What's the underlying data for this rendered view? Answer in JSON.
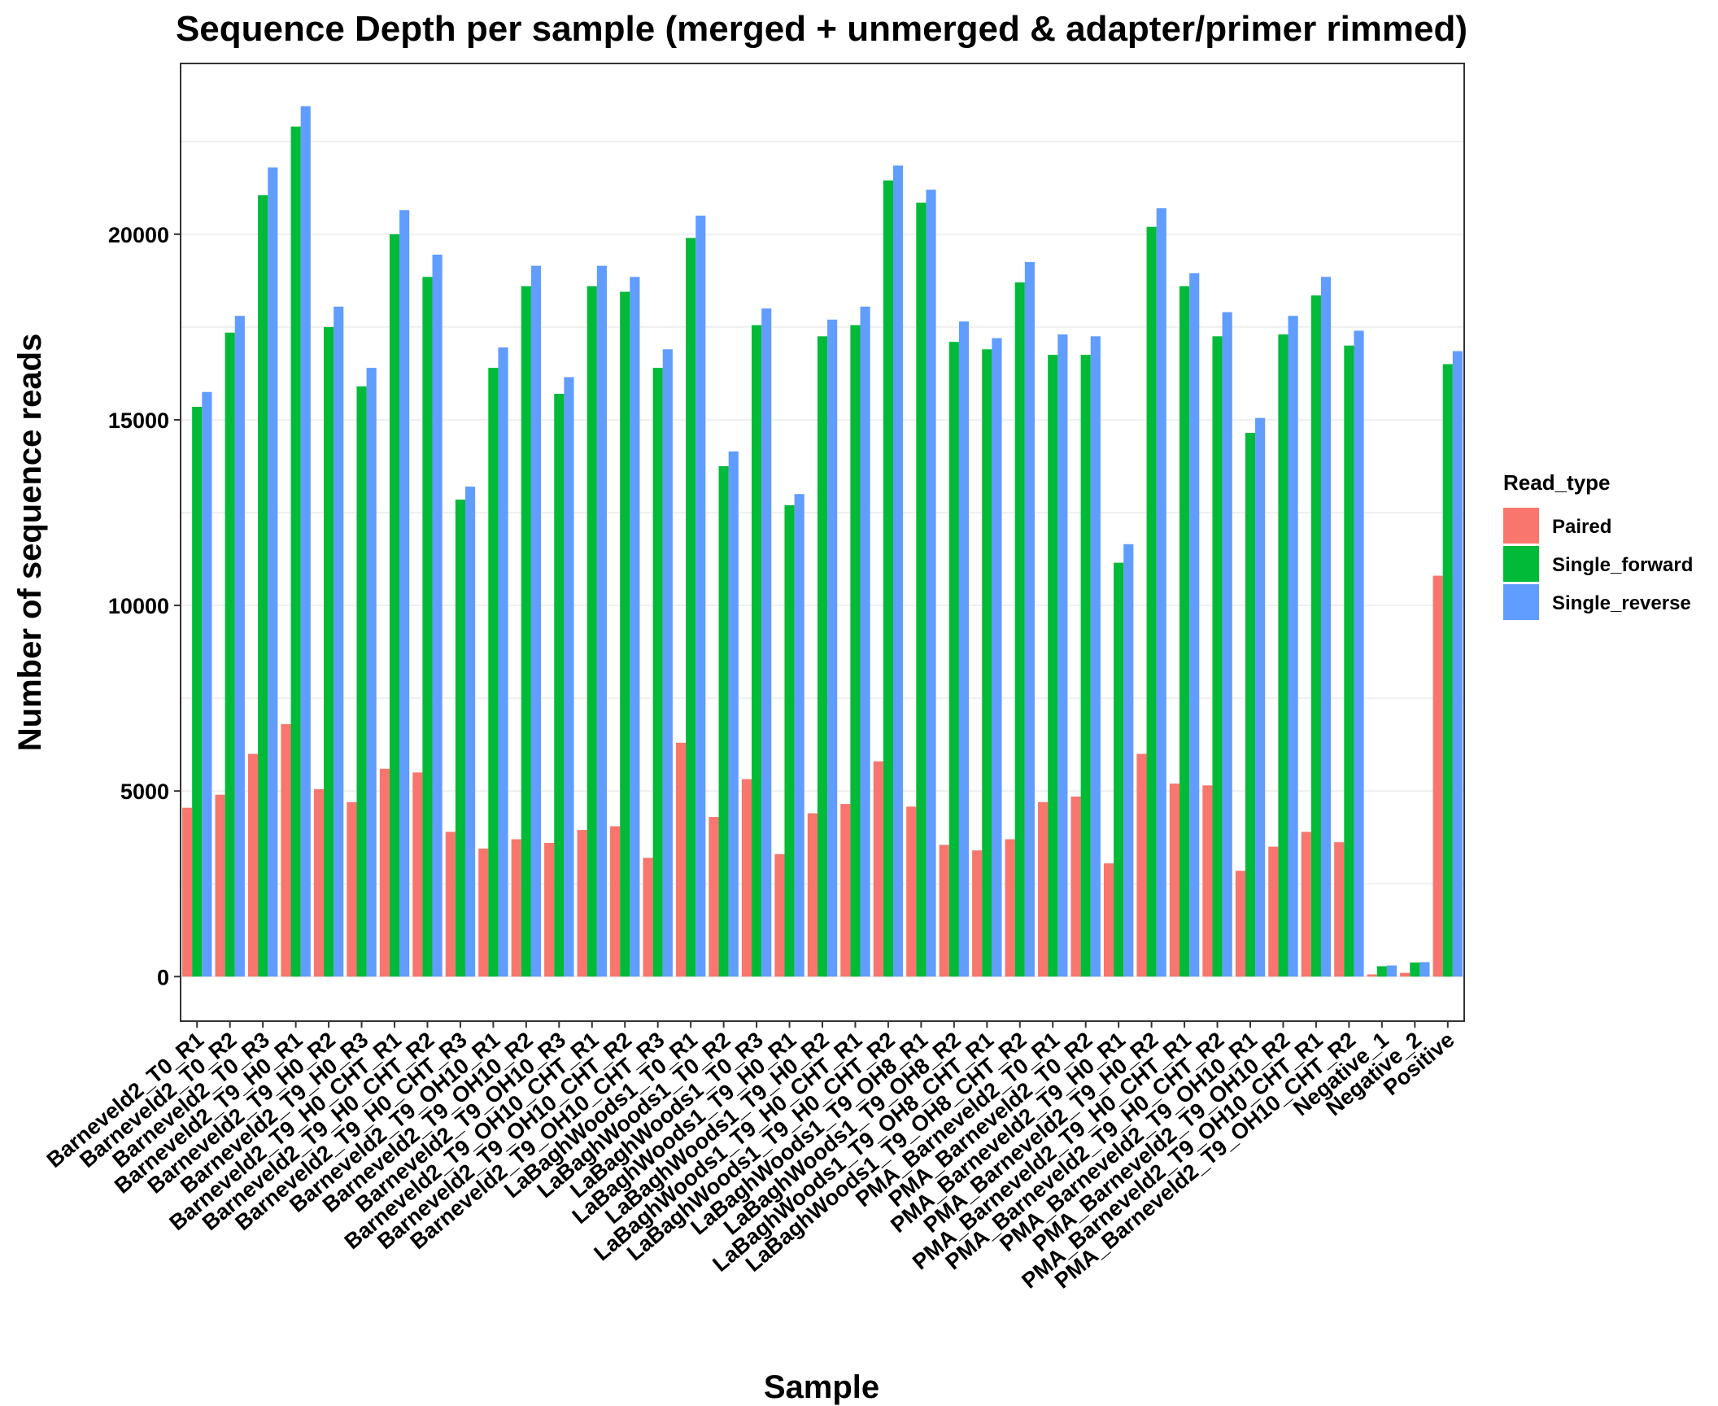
{
  "chart_data": {
    "type": "bar",
    "title": "Sequence Depth per sample (merged + unmerged & adapter/primer rimmed)",
    "xlabel": "Sample",
    "ylabel": "Number of sequence reads",
    "ylim": [
      -1200,
      24600
    ],
    "yticks": [
      0,
      5000,
      10000,
      15000,
      20000
    ],
    "grid": true,
    "legend_position": "right",
    "legend_title": "Read_type",
    "categories": [
      "Barneveld2_T0_R1",
      "Barneveld2_T0_R2",
      "Barneveld2_T0_R3",
      "Barneveld2_T9_H0_R1",
      "Barneveld2_T9_H0_R2",
      "Barneveld2_T9_H0_R3",
      "Barneveld2_T9_H0_CHT_R1",
      "Barneveld2_T9_H0_CHT_R2",
      "Barneveld2_T9_H0_CHT_R3",
      "Barneveld2_T9_OH10_R1",
      "Barneveld2_T9_OH10_R2",
      "Barneveld2_T9_OH10_R3",
      "Barneveld2_T9_OH10_CHT_R1",
      "Barneveld2_T9_OH10_CHT_R2",
      "Barneveld2_T9_OH10_CHT_R3",
      "LaBaghWoods1_T0_R1",
      "LaBaghWoods1_T0_R2",
      "LaBaghWoods1_T0_R3",
      "LaBaghWoods1_T9_H0_R1",
      "LaBaghWoods1_T9_H0_R2",
      "LaBaghWoods1_T9_H0_CHT_R1",
      "LaBaghWoods1_T9_H0_CHT_R2",
      "LaBaghWoods1_T9_OH8_R1",
      "LaBaghWoods1_T9_OH8_R2",
      "LaBaghWoods1_T9_OH8_CHT_R1",
      "LaBaghWoods1_T9_OH8_CHT_R2",
      "PMA_Barneveld2_T0_R1",
      "PMA_Barneveld2_T0_R2",
      "PMA_Barneveld2_T9_H0_R1",
      "PMA_Barneveld2_T9_H0_R2",
      "PMA_Barneveld2_T9_H0_CHT_R1",
      "PMA_Barneveld2_T9_H0_CHT_R2",
      "PMA_Barneveld2_T9_OH10_R1",
      "PMA_Barneveld2_T9_OH10_R2",
      "PMA_Barneveld2_T9_OH10_CHT_R1",
      "PMA_Barneveld2_T9_OH10_CHT_R2",
      "Negative_1",
      "Negative_2",
      "Positive"
    ],
    "series": [
      {
        "name": "Paired",
        "color": "#F8766D",
        "values": [
          4550,
          4900,
          6000,
          6800,
          5050,
          4700,
          5600,
          5500,
          3900,
          3450,
          3700,
          3600,
          3950,
          4050,
          3200,
          6300,
          4300,
          5320,
          3300,
          4400,
          4650,
          5800,
          4580,
          3550,
          3400,
          3700,
          4700,
          4850,
          3050,
          6000,
          5200,
          5150,
          2850,
          3500,
          3900,
          3620,
          60,
          100,
          10800
        ]
      },
      {
        "name": "Single_forward",
        "color": "#00BA38",
        "values": [
          15350,
          17350,
          21050,
          22900,
          17500,
          15900,
          20000,
          18850,
          12850,
          16400,
          18600,
          15700,
          18600,
          18450,
          16400,
          19900,
          13750,
          17550,
          12700,
          17250,
          17550,
          21450,
          20850,
          17100,
          16900,
          18700,
          16750,
          16750,
          11150,
          20200,
          18600,
          17250,
          14650,
          17300,
          18350,
          17000,
          280,
          380,
          16500
        ]
      },
      {
        "name": "Single_reverse",
        "color": "#619CFF",
        "values": [
          15750,
          17800,
          21800,
          23450,
          18050,
          16400,
          20650,
          19450,
          13200,
          16950,
          19150,
          16150,
          19150,
          18850,
          16900,
          20500,
          14150,
          18000,
          13000,
          17700,
          18050,
          21850,
          21200,
          17650,
          17200,
          19250,
          17300,
          17250,
          11650,
          20700,
          18950,
          17900,
          15050,
          17800,
          18850,
          17400,
          300,
          390,
          16850
        ]
      }
    ]
  }
}
